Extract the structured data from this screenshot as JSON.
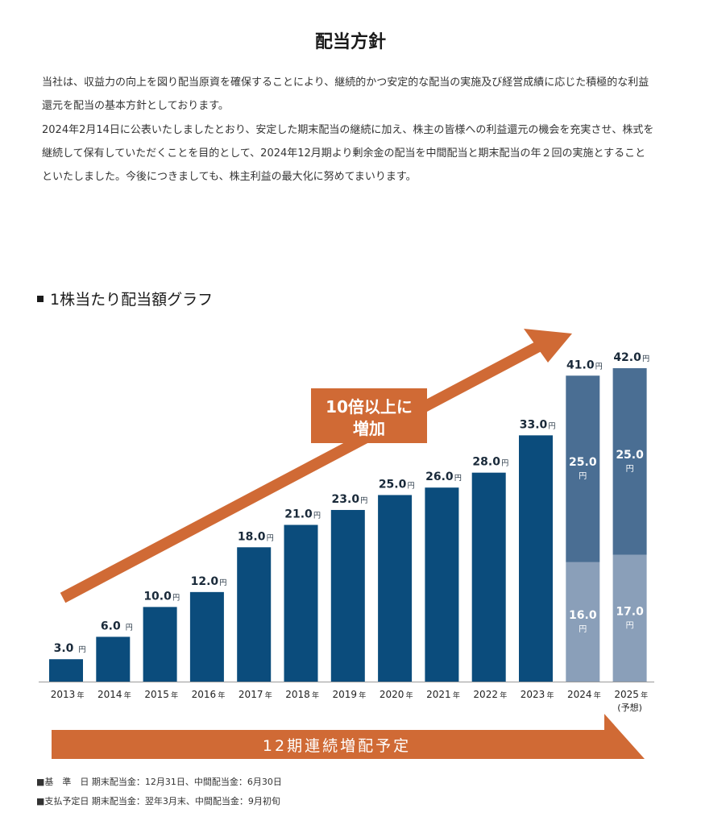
{
  "page": {
    "title": "配当方針",
    "paragraph1": "当社は、収益力の向上を図り配当原資を確保することにより、継続的かつ安定的な配当の実施及び経営成績に応じた積極的な利益還元を配当の基本方針としております。",
    "paragraph2": "2024年2月14日に公表いたしましたとおり、安定した期末配当の継続に加え、株主の皆様への利益還元の機会を充実させ、株式を継続して保有していただくことを目的として、2024年12月期より剰余金の配当を中間配当と期末配当の年２回の実施とすることといたしました。今後につきましても、株主利益の最大化に努めてまいります。",
    "section_heading": "1株当たり配当額グラフ",
    "arrow_label_line1": "10倍以上に",
    "arrow_label_line2": "増加",
    "banner_label": "12期連続増配予定",
    "note1": "■基　準　日 期末配当金：12月31日、中間配当金：6月30日",
    "note2": "■支払予定日 期末配当金：翌年3月末、中間配当金：9月初旬"
  },
  "colors": {
    "bar": "#0b4c7c",
    "bar_interim": "#8a9fb9",
    "bar_final": "#4a6e93",
    "accent_orange": "#d06a35",
    "text_dark": "#1a2a3a"
  },
  "chart_data": {
    "type": "bar",
    "unit": "円",
    "year_suffix": "年",
    "categories": [
      "2013",
      "2014",
      "2015",
      "2016",
      "2017",
      "2018",
      "2019",
      "2020",
      "2021",
      "2022",
      "2023",
      "2024",
      "2025"
    ],
    "category_notes": [
      "",
      "",
      "",
      "",
      "",
      "",
      "",
      "",
      "",
      "",
      "",
      "",
      "(予想)"
    ],
    "totals": [
      3.0,
      6.0,
      10.0,
      12.0,
      18.0,
      21.0,
      23.0,
      25.0,
      26.0,
      28.0,
      33.0,
      41.0,
      42.0
    ],
    "stacked": [
      {
        "category": "2024",
        "interim": 16.0,
        "final": 25.0
      },
      {
        "category": "2025",
        "interim": 17.0,
        "final": 25.0
      }
    ],
    "ylim": [
      0,
      42.0
    ]
  }
}
